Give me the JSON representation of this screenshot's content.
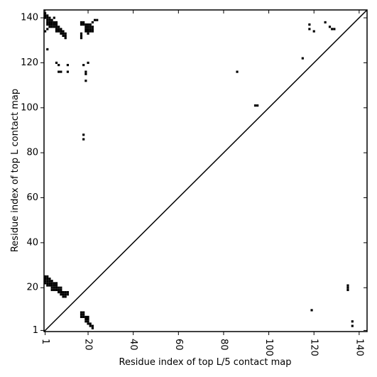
{
  "chart_data": {
    "type": "scatter",
    "xlabel": "Residue index of top L/5 contact map",
    "ylabel": "Residue index of top L contact map",
    "color": "#000000",
    "xlim": [
      0.5,
      143.5
    ],
    "ylim": [
      0.5,
      143.5
    ],
    "xticks": [
      1,
      20,
      40,
      60,
      80,
      100,
      120,
      140
    ],
    "yticks": [
      1,
      20,
      40,
      60,
      80,
      100,
      120,
      140
    ],
    "x": [
      1,
      1,
      1,
      1,
      2,
      2,
      2,
      2,
      2,
      3,
      3,
      3,
      3,
      4,
      4,
      4,
      4,
      4,
      5,
      5,
      5,
      5,
      6,
      6,
      6,
      6,
      7,
      7,
      7,
      8,
      8,
      8,
      8,
      9,
      9,
      9,
      10,
      10,
      10,
      11,
      11,
      17,
      17,
      17,
      18,
      18,
      18,
      19,
      19,
      19,
      20,
      20,
      20,
      20,
      21,
      21,
      22,
      22,
      1,
      1,
      1,
      1,
      2,
      2,
      2,
      2,
      2,
      2,
      3,
      3,
      3,
      3,
      3,
      4,
      4,
      4,
      4,
      5,
      5,
      5,
      5,
      6,
      6,
      6,
      6,
      6,
      7,
      7,
      7,
      8,
      8,
      8,
      9,
      9,
      9,
      10,
      10,
      10,
      17,
      17,
      17,
      17,
      17,
      18,
      18,
      19,
      19,
      19,
      19,
      20,
      20,
      20,
      20,
      20,
      21,
      21,
      21,
      21,
      22,
      22,
      22,
      22,
      23,
      24,
      2,
      6,
      7,
      7,
      8,
      11,
      11,
      18,
      19,
      19,
      20,
      19,
      18,
      18,
      86,
      94,
      95,
      115,
      118,
      118,
      120,
      125,
      127,
      128,
      129,
      135,
      135,
      135,
      119,
      137,
      137
    ],
    "values": [
      22,
      23,
      24,
      25,
      21,
      22,
      23,
      24,
      25,
      21,
      22,
      23,
      24,
      19,
      20,
      21,
      22,
      23,
      19,
      20,
      21,
      22,
      19,
      20,
      21,
      22,
      18,
      19,
      20,
      17,
      18,
      19,
      20,
      16,
      17,
      18,
      16,
      17,
      18,
      17,
      18,
      7,
      8,
      9,
      7,
      8,
      9,
      5,
      6,
      7,
      4,
      5,
      6,
      7,
      3,
      4,
      2,
      3,
      134,
      140,
      141,
      142,
      135,
      137,
      138,
      139,
      140,
      141,
      136,
      137,
      138,
      139,
      140,
      136,
      137,
      138,
      139,
      136,
      137,
      138,
      140,
      134,
      135,
      136,
      137,
      138,
      134,
      135,
      136,
      133,
      134,
      135,
      132,
      133,
      134,
      131,
      132,
      133,
      131,
      132,
      133,
      137,
      138,
      137,
      138,
      134,
      135,
      136,
      137,
      133,
      134,
      135,
      136,
      137,
      134,
      135,
      136,
      137,
      134,
      135,
      136,
      138,
      139,
      139,
      126,
      120,
      119,
      116,
      116,
      119,
      116,
      119,
      116,
      115,
      120,
      112,
      88,
      86,
      116,
      101,
      101,
      122,
      137,
      135,
      134,
      138,
      136,
      135,
      135,
      21,
      20,
      19,
      10,
      5,
      3
    ]
  }
}
